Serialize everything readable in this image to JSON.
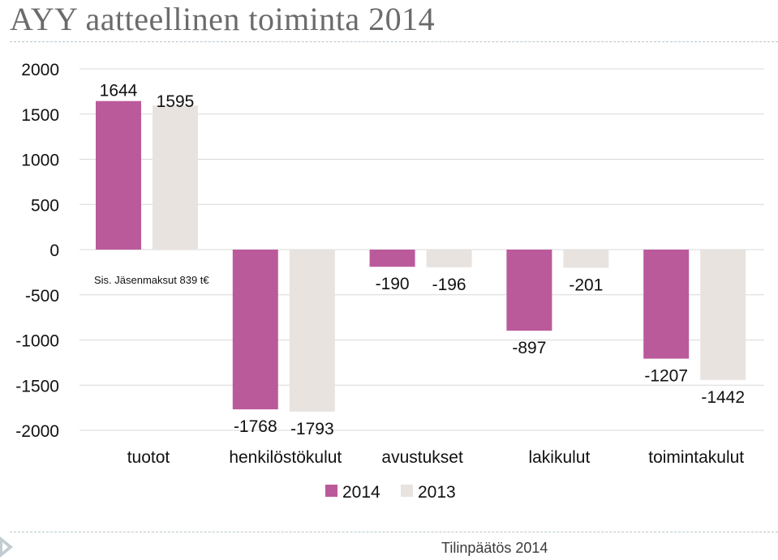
{
  "title": "AYY aatteellinen toiminta 2014",
  "footer": "Tilinpäätös 2014",
  "annotation": "Sis. Jäsenmaksut 839 t€",
  "colors": {
    "s2014": "#bb5a9b",
    "s2013": "#e8e3df",
    "grid": "#d9d9d9"
  },
  "chart_data": {
    "type": "bar",
    "title": "AYY aatteellinen toiminta 2014",
    "categories": [
      "tuotot",
      "henkilöstökulut",
      "avustukset",
      "lakikulut",
      "toimintakulut"
    ],
    "series": [
      {
        "name": "2014",
        "values": [
          1644,
          -1768,
          -190,
          -897,
          -1207
        ]
      },
      {
        "name": "2013",
        "values": [
          1595,
          -1793,
          -196,
          -201,
          -1442
        ]
      }
    ],
    "yticks": [
      "2000",
      "1500",
      "1000",
      "500",
      "0",
      "-500",
      "-1000",
      "-1500",
      "-2000"
    ],
    "ylim": [
      -2000,
      2000
    ],
    "grid": true,
    "legend": "bottom-center",
    "annotations": [
      "Sis. Jäsenmaksut 839 t€"
    ]
  }
}
